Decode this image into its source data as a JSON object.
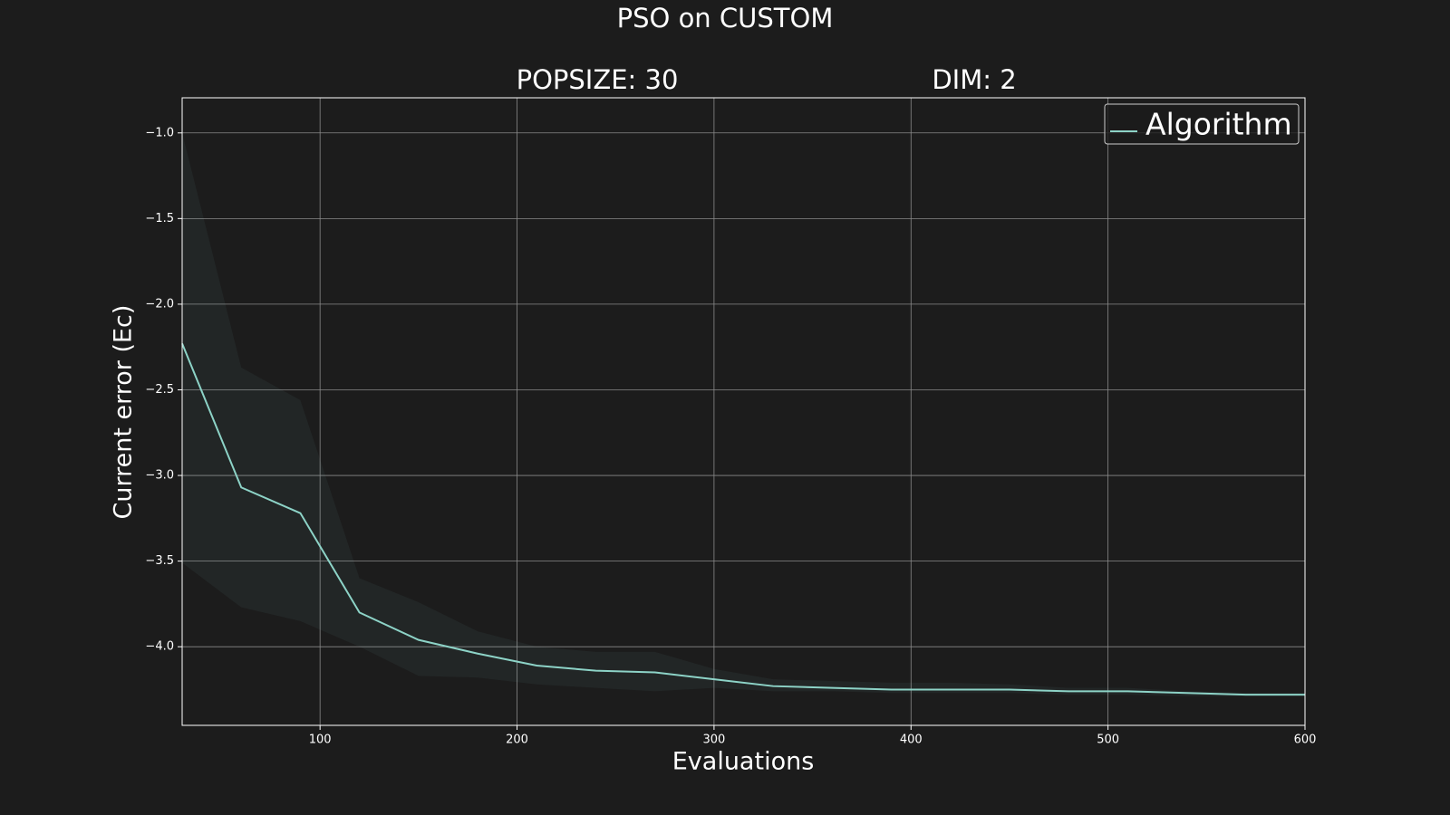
{
  "chart_data": {
    "type": "line",
    "title": "PSO on CUSTOM",
    "subtitles": [
      "POPSIZE: 30",
      "DIM: 2"
    ],
    "x_label": "Evaluations",
    "y_label": "Current error (Ec)",
    "x": [
      30,
      60,
      90,
      120,
      150,
      180,
      210,
      240,
      270,
      300,
      330,
      360,
      390,
      420,
      450,
      480,
      510,
      540,
      570,
      600
    ],
    "series": [
      {
        "name": "Algorithm",
        "color": "#8dd3c7",
        "values": [
          -2.23,
          -3.07,
          -3.22,
          -3.8,
          -3.96,
          -4.04,
          -4.11,
          -4.14,
          -4.15,
          -4.19,
          -4.23,
          -4.24,
          -4.25,
          -4.25,
          -4.25,
          -4.26,
          -4.26,
          -4.27,
          -4.28,
          -4.28
        ],
        "band_upper": [
          -1.0,
          -2.37,
          -2.56,
          -3.6,
          -3.74,
          -3.91,
          -4.0,
          -4.03,
          -4.03,
          -4.13,
          -4.19,
          -4.2,
          -4.21,
          -4.21,
          -4.22,
          -4.24,
          -4.24,
          -4.26,
          -4.27,
          -4.27
        ],
        "band_lower": [
          -3.51,
          -3.77,
          -3.85,
          -4.0,
          -4.17,
          -4.18,
          -4.22,
          -4.24,
          -4.26,
          -4.24,
          -4.26,
          -4.26,
          -4.27,
          -4.27,
          -4.27,
          -4.28,
          -4.28,
          -4.29,
          -4.29,
          -4.29
        ]
      }
    ],
    "xlim": [
      30,
      600
    ],
    "ylim": [
      -4.459,
      -0.795
    ],
    "xticks": [
      100,
      200,
      300,
      400,
      500,
      600
    ],
    "yticks": [
      {
        "value": -1.0,
        "label": "−1.0"
      },
      {
        "value": -1.5,
        "label": "−1.5"
      },
      {
        "value": -2.0,
        "label": "−2.0"
      },
      {
        "value": -2.5,
        "label": "−2.5"
      },
      {
        "value": -3.0,
        "label": "−3.0"
      },
      {
        "value": -3.5,
        "label": "−3.5"
      },
      {
        "value": -4.0,
        "label": "−4.0"
      }
    ],
    "grid": true,
    "legend": "upper right"
  }
}
